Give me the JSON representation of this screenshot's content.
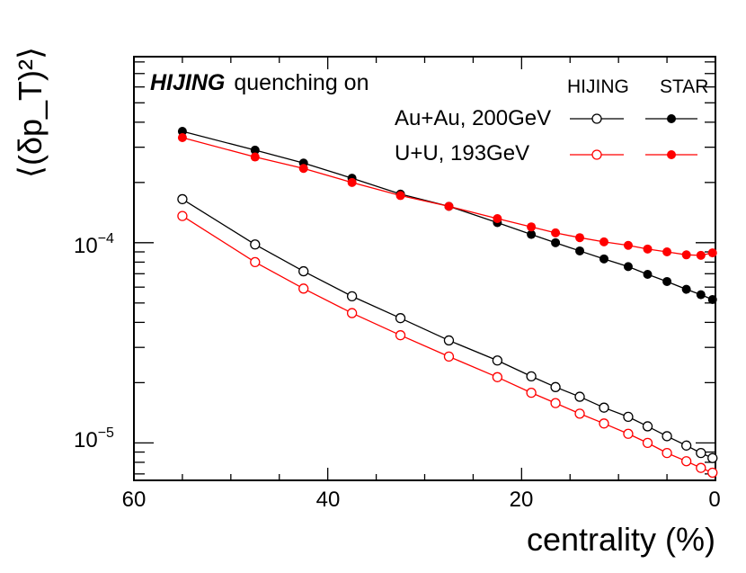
{
  "chart_data": {
    "type": "line",
    "title_bold": "HIJING",
    "title_rest": "quenching on",
    "xlabel": "centrality (%)",
    "ylabel": "⟨(δp_T)²⟩",
    "xlim": [
      60,
      0
    ],
    "ylim": [
      6.5e-06,
      0.00085
    ],
    "yscale": "log",
    "x_ticks": [
      "60",
      "40",
      "20",
      "0"
    ],
    "y_ticks": [
      {
        "base": "10",
        "exp": "−4"
      },
      {
        "base": "10",
        "exp": "−5"
      }
    ],
    "legend": {
      "col_headers": [
        "HIJING",
        "STAR"
      ],
      "rows": [
        "Au+Au, 200GeV",
        "U+U, 193GeV"
      ]
    },
    "x": [
      55,
      47.5,
      42.5,
      37.5,
      32.5,
      27.5,
      22.5,
      19,
      16.5,
      14,
      11.5,
      9,
      7,
      5,
      3,
      1.5,
      0.3
    ],
    "series": [
      {
        "name": "Au+Au, 200GeV HIJING",
        "color": "#000000",
        "marker": "open",
        "values": [
          0.000165,
          9.8e-05,
          7.2e-05,
          5.4e-05,
          4.2e-05,
          3.25e-05,
          2.58e-05,
          2.15e-05,
          1.9e-05,
          1.7e-05,
          1.5e-05,
          1.35e-05,
          1.21e-05,
          1.08e-05,
          9.7e-06,
          8.9e-06,
          8.4e-06
        ]
      },
      {
        "name": "U+U, 193GeV HIJING",
        "color": "#ff0000",
        "marker": "open",
        "values": [
          0.000136,
          8e-05,
          5.9e-05,
          4.45e-05,
          3.45e-05,
          2.7e-05,
          2.13e-05,
          1.78e-05,
          1.58e-05,
          1.4e-05,
          1.25e-05,
          1.11e-05,
          1e-05,
          8.9e-06,
          8.1e-06,
          7.5e-06,
          7.1e-06
        ]
      },
      {
        "name": "Au+Au, 200GeV STAR",
        "color": "#000000",
        "marker": "filled",
        "values": [
          0.00036,
          0.00029,
          0.00025,
          0.00021,
          0.000175,
          0.000152,
          0.000126,
          0.00011,
          0.0001,
          9.1e-05,
          8.3e-05,
          7.6e-05,
          6.95e-05,
          6.4e-05,
          5.85e-05,
          5.5e-05,
          5.2e-05
        ]
      },
      {
        "name": "U+U, 193GeV STAR",
        "color": "#ff0000",
        "marker": "filled",
        "values": [
          0.000335,
          0.000268,
          0.000235,
          0.0002,
          0.000172,
          0.000152,
          0.000132,
          0.00012,
          0.000112,
          0.000106,
          0.000101,
          9.7e-05,
          9.3e-05,
          9e-05,
          8.7e-05,
          8.65e-05,
          8.9e-05
        ]
      }
    ]
  }
}
